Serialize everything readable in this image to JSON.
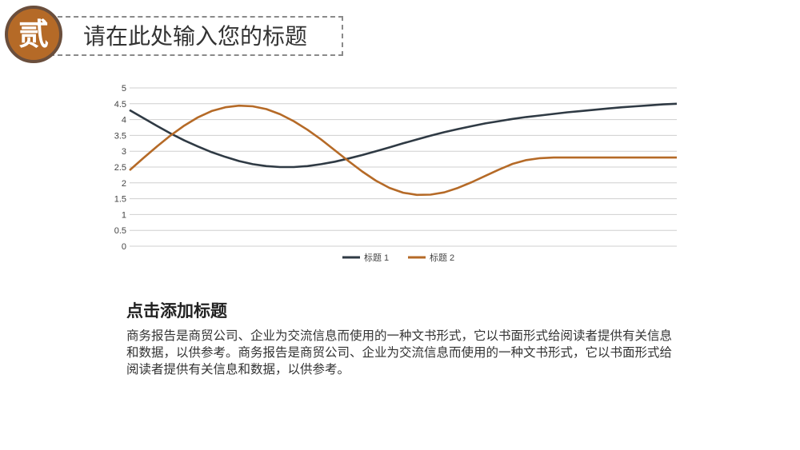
{
  "header": {
    "badge_char": "贰",
    "title": "请在此处输入您的标题"
  },
  "colors": {
    "accent": "#b56a27",
    "dark": "#2f3a44",
    "badge_border": "#6a4e3c"
  },
  "chart_data": {
    "type": "line",
    "ylim": [
      0,
      5
    ],
    "yticks": [
      "0",
      "0.5",
      "1",
      "1.5",
      "2",
      "2.5",
      "3",
      "3.5",
      "4",
      "4.5",
      "5"
    ],
    "grid": true,
    "legend_position": "bottom",
    "x": [
      0,
      1,
      2,
      3,
      4,
      5,
      6,
      7,
      8,
      9,
      10,
      11,
      12,
      13,
      14,
      15,
      16,
      17,
      18,
      19,
      20,
      21,
      22,
      23,
      24,
      25,
      26,
      27,
      28,
      29,
      30,
      31,
      32,
      33,
      34,
      35,
      36,
      37,
      38,
      39,
      40
    ],
    "series": [
      {
        "name": "标题 1",
        "color": "#2f3a44",
        "values": [
          4.3,
          4.05,
          3.8,
          3.56,
          3.34,
          3.15,
          2.97,
          2.82,
          2.69,
          2.59,
          2.53,
          2.5,
          2.5,
          2.53,
          2.59,
          2.67,
          2.77,
          2.88,
          3.0,
          3.12,
          3.25,
          3.37,
          3.49,
          3.6,
          3.7,
          3.79,
          3.88,
          3.95,
          4.02,
          4.08,
          4.13,
          4.18,
          4.23,
          4.27,
          4.31,
          4.35,
          4.39,
          4.42,
          4.45,
          4.48,
          4.5
        ]
      },
      {
        "name": "标题 2",
        "color": "#b56a27",
        "values": [
          2.4,
          2.78,
          3.15,
          3.5,
          3.81,
          4.07,
          4.27,
          4.39,
          4.44,
          4.42,
          4.33,
          4.17,
          3.95,
          3.68,
          3.37,
          3.03,
          2.69,
          2.36,
          2.07,
          1.84,
          1.69,
          1.62,
          1.63,
          1.7,
          1.84,
          2.02,
          2.22,
          2.42,
          2.6,
          2.72,
          2.78,
          2.8,
          2.8,
          2.8,
          2.8,
          2.8,
          2.8,
          2.8,
          2.8,
          2.8,
          2.8
        ]
      }
    ]
  },
  "section": {
    "title": "点击添加标题",
    "body": "商务报告是商贸公司、企业为交流信息而使用的一种文书形式，它以书面形式给阅读者提供有关信息和数据，以供参考。商务报告是商贸公司、企业为交流信息而使用的一种文书形式，它以书面形式给阅读者提供有关信息和数据，以供参考。"
  }
}
